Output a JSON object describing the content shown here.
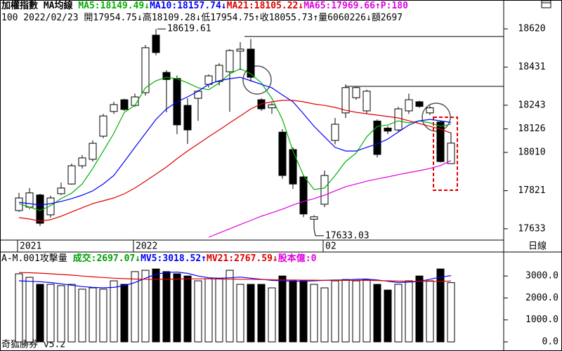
{
  "chart_data": [
    {
      "type": "candlestick",
      "title": "加權指數 MA均線",
      "legend": [
        {
          "text": "MA5:18149.49↓",
          "color": "#00b000"
        },
        {
          "text": "MA10:18157.74↓",
          "color": "#0000ff"
        },
        {
          "text": "MA21:18105.22↓",
          "color": "#e00000"
        },
        {
          "text": "MA65:17969.66↑",
          "color": "#e000e0"
        },
        {
          "text": "P:180",
          "color": "#e000e0"
        }
      ],
      "subtitle": "100 2022/02/23 開17954.75↓高18109.28↓低17954.75↑收18055.73↑量6060226↓額2697",
      "categories": [
        "2021",
        null,
        null,
        null,
        null,
        null,
        null,
        null,
        null,
        null,
        null,
        "2022",
        null,
        null,
        null,
        null,
        null,
        null,
        null,
        null,
        null,
        null,
        null,
        null,
        null,
        null,
        null,
        null,
        null,
        "02",
        null,
        null,
        null,
        null,
        null,
        null,
        null,
        null,
        null,
        null,
        null,
        null
      ],
      "open": [
        17723,
        17740,
        17800,
        17702,
        17806,
        17854,
        17944,
        17976,
        18090,
        18212,
        18270,
        18242,
        18305,
        18589,
        18405,
        18375,
        18242,
        18277,
        18346,
        18360,
        18408,
        18510,
        18520,
        18270,
        18230,
        18110,
        18024,
        17889,
        17680,
        17754,
        18069,
        18205,
        18280,
        18215,
        18165,
        18130,
        18121,
        18215,
        18260,
        18205,
        18160,
        17954.75
      ],
      "high": [
        17810,
        17834,
        17806,
        17796,
        17861,
        17955,
        17997,
        18069,
        18200,
        18260,
        18275,
        18300,
        18540,
        18619.61,
        18416,
        18390,
        18277,
        18318,
        18395,
        18450,
        18520,
        18554,
        18570,
        18277,
        18255,
        18125,
        18035,
        17900,
        17700,
        17920,
        18180,
        18346,
        18335,
        18320,
        18173,
        18140,
        18235,
        18300,
        18265,
        18240,
        18165,
        18109.28
      ],
      "low": [
        17716,
        17730,
        17647,
        17688,
        17800,
        17851,
        17930,
        17965,
        18080,
        18200,
        18215,
        18235,
        18290,
        18490,
        18208,
        18100,
        18052,
        18166,
        18330,
        18340,
        18210,
        18416,
        18360,
        18215,
        18200,
        17880,
        17830,
        17690,
        17633.03,
        17740,
        18050,
        18180,
        18270,
        18200,
        17985,
        18100,
        18110,
        18200,
        18230,
        18195,
        17960,
        17954.75
      ],
      "close": [
        17785,
        17810,
        17660,
        17785,
        17834,
        17944,
        17983,
        18055,
        18190,
        18246,
        18222,
        18284,
        18527,
        18503,
        18370,
        18146,
        18121,
        18312,
        18388,
        18440,
        18513,
        18520,
        18381,
        18225,
        18245,
        17896,
        17854,
        17706,
        17692,
        17896,
        18149,
        18330,
        18330,
        18312,
        18000,
        18115,
        18225,
        18270,
        18237,
        18230,
        17965,
        18055.73
      ],
      "up_color": "#ffffff",
      "down_color": "#000000",
      "lines": [
        {
          "color": "#00b000",
          "values": [
            17757,
            17740,
            17723,
            17747,
            17782,
            17809,
            17854,
            17931,
            18017,
            18104,
            18208,
            18242,
            18329,
            18364,
            18381,
            18374,
            18353,
            18329,
            18319,
            18353,
            18398,
            18423,
            18398,
            18353,
            18277,
            18173,
            18017,
            17896,
            17827,
            17834,
            17896,
            17965,
            18007,
            18087,
            18139,
            18145,
            18166,
            18156,
            18166,
            18156,
            18139,
            18149.49
          ]
        },
        {
          "color": "#0000ff",
          "values": [
            17764,
            17757,
            17750,
            17757,
            17768,
            17782,
            17799,
            17820,
            17854,
            17896,
            17965,
            18035,
            18104,
            18173,
            18225,
            18260,
            18284,
            18312,
            18346,
            18364,
            18374,
            18381,
            18364,
            18346,
            18329,
            18294,
            18260,
            18201,
            18139,
            18087,
            18035,
            18017,
            18017,
            18035,
            18052,
            18076,
            18111,
            18145,
            18166,
            18173,
            18166,
            18157.74
          ]
        },
        {
          "color": "#e00000",
          "values": [
            17688,
            17681,
            17671,
            17678,
            17695,
            17716,
            17737,
            17757,
            17771,
            17785,
            17806,
            17834,
            17868,
            17903,
            17938,
            17979,
            18017,
            18052,
            18087,
            18121,
            18156,
            18190,
            18225,
            18249,
            18260,
            18267,
            18267,
            18260,
            18249,
            18242,
            18232,
            18218,
            18208,
            18201,
            18194,
            18187,
            18180,
            18166,
            18152,
            18139,
            18125,
            18105.22
          ]
        },
        {
          "color": "#e000e0",
          "values": [
            null,
            null,
            null,
            null,
            null,
            null,
            null,
            null,
            null,
            null,
            null,
            null,
            null,
            null,
            null,
            null,
            null,
            null,
            17591,
            17612,
            17633,
            17654,
            17674,
            17695,
            17712,
            17730,
            17750,
            17768,
            17782,
            17799,
            17820,
            17841,
            17854,
            17868,
            17879,
            17889,
            17900,
            17910,
            17920,
            17931,
            17945,
            17969.66
          ]
        }
      ],
      "ylim": [
        17584,
        18707
      ],
      "yticks": [
        17633,
        17821,
        18010,
        18126,
        18243,
        18431,
        18620
      ]
    },
    {
      "type": "bar",
      "title": "A-M.001攻擊量",
      "legend": [
        {
          "text": "成交:2697.07↓",
          "color": "#00a000"
        },
        {
          "text": "MV5:3018.52↑",
          "color": "#0000ff"
        },
        {
          "text": "MV21:2767.59↓",
          "color": "#e00000"
        },
        {
          "text": "股本億:0",
          "color": "#e000e0"
        }
      ],
      "values": [
        3100,
        2940,
        2620,
        2620,
        2560,
        2620,
        2400,
        2460,
        2400,
        2780,
        2620,
        3200,
        3260,
        3320,
        3200,
        3100,
        3000,
        2780,
        2880,
        2880,
        3260,
        2620,
        2620,
        2620,
        2460,
        3000,
        2780,
        2780,
        2620,
        2460,
        2780,
        2840,
        2780,
        2840,
        2620,
        2360,
        2620,
        2780,
        3000,
        2780,
        3320,
        2697.07
      ],
      "lines": [
        {
          "color": "#0000ff",
          "values": [
            2780,
            2760,
            2740,
            2700,
            2640,
            2580,
            2520,
            2480,
            2460,
            2480,
            2560,
            2700,
            2900,
            3080,
            3160,
            3180,
            3120,
            3000,
            2920,
            2900,
            2920,
            2950,
            2900,
            2850,
            2800,
            2780,
            2760,
            2760,
            2780,
            2800,
            2820,
            2820,
            2850,
            2860,
            2820,
            2760,
            2700,
            2720,
            2760,
            2850,
            2950,
            3018.52
          ]
        },
        {
          "color": "#e00000",
          "values": [
            3160,
            3150,
            3130,
            3100,
            3070,
            3040,
            3000,
            2960,
            2930,
            2900,
            2880,
            2860,
            2850,
            2850,
            2850,
            2860,
            2870,
            2870,
            2870,
            2860,
            2860,
            2850,
            2850,
            2840,
            2830,
            2820,
            2820,
            2810,
            2810,
            2800,
            2800,
            2800,
            2800,
            2800,
            2790,
            2780,
            2770,
            2760,
            2760,
            2760,
            2760,
            2767.59
          ]
        }
      ],
      "ylim": [
        0,
        4060
      ],
      "yticks": [
        {
          "value": 0,
          "label": "0.0"
        },
        {
          "value": 1000,
          "label": "1000.0"
        },
        {
          "value": 2000,
          "label": "2000.0"
        },
        {
          "value": 3000,
          "label": "3000.0"
        }
      ]
    }
  ],
  "period_label": "日線",
  "footer": "奇狐勝券 v5.2"
}
